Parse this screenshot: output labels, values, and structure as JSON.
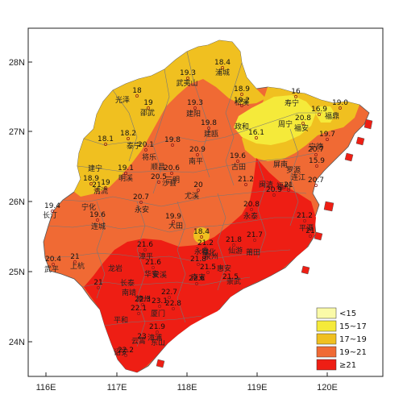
{
  "axes": {
    "x_ticks": [
      "116E",
      "117E",
      "118E",
      "119E",
      "120E"
    ],
    "y_ticks": [
      "28N",
      "27N",
      "26N",
      "25N",
      "24N"
    ]
  },
  "legend": [
    {
      "label": "<15",
      "color": "#fafaa8"
    },
    {
      "label": "15~17",
      "color": "#f5ea3a"
    },
    {
      "label": "17~19",
      "color": "#f0c020"
    },
    {
      "label": "19~21",
      "color": "#f06a34"
    },
    {
      "label": "≥21",
      "color": "#ee1e14"
    }
  ],
  "places": [
    "浦城",
    "武夷山",
    "光泽",
    "邵武",
    "建阳",
    "建瓯",
    "松溪",
    "政和",
    "寿宁",
    "周宁",
    "福鼎",
    "福安",
    "泰宁",
    "将乐",
    "顺昌",
    "南平",
    "古田",
    "屏南",
    "宁德",
    "建宁",
    "清流",
    "明溪",
    "三明",
    "沙县",
    "尤溪",
    "闽清",
    "罗源",
    "连江",
    "宁化",
    "永安",
    "大田",
    "永泰",
    "福州",
    "长汀",
    "连城",
    "德化",
    "平潭",
    "漳平",
    "安溪",
    "永春",
    "仙游",
    "莆田",
    "上杭",
    "武平",
    "龙岩",
    "华安",
    "南安",
    "惠安",
    "漳州",
    "厦门",
    "泉州",
    "长泰",
    "南靖",
    "平和",
    "云霄",
    "漳浦",
    "诏安",
    "东山",
    "崇武"
  ],
  "stations": [
    "18.4",
    "19.3",
    "18",
    "19",
    "18.9",
    "19.2",
    "16",
    "16.9",
    "19.0",
    "19.3",
    "19.8",
    "16.1",
    "20.8",
    "18.1",
    "18.2",
    "20.1",
    "19.8",
    "20.9",
    "19.6",
    "19.7",
    "20.7",
    "15.9",
    "19.1",
    "20.6",
    "21.2",
    "20.5",
    "20",
    "21",
    "20.9",
    "20.7",
    "18.9",
    "19",
    "20.7",
    "21",
    "20.8",
    "21.2",
    "19.4",
    "19.6",
    "19.9",
    "21",
    "18.4",
    "21.2",
    "21.8",
    "21.7",
    "20.4",
    "21",
    "21.6",
    "21.8",
    "21.6",
    "21.5",
    "21.5",
    "22.6",
    "21",
    "22.7",
    "22.3",
    "23.1",
    "22.8",
    "22.1",
    "21.9",
    "23",
    "22.2"
  ]
}
